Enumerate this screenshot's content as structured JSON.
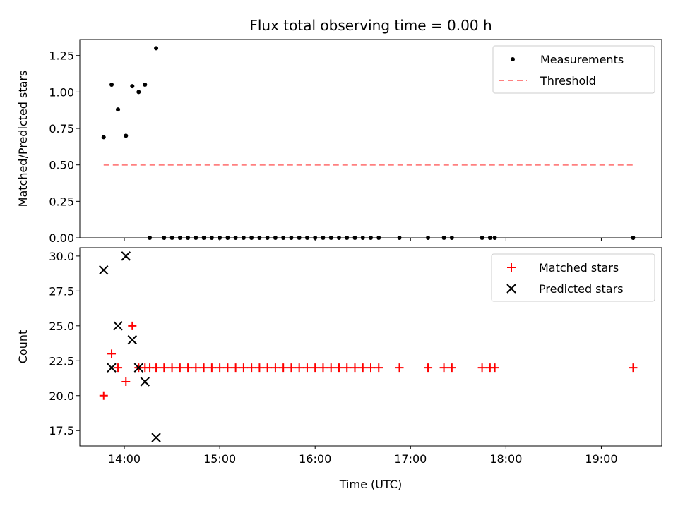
{
  "title": "Flux total observing time = 0.00 h",
  "xlabel": "Time (UTC)",
  "colors": {
    "measurement": "#000000",
    "threshold": "#ff8080",
    "matched": "#ff0000",
    "predicted": "#000000"
  },
  "chart_data": [
    {
      "type": "scatter",
      "ylabel": "Matched/Predicted stars",
      "xlim": [
        "13:32",
        "19:38"
      ],
      "ylim": [
        0,
        1.36
      ],
      "yticks": [
        "0.00",
        "0.25",
        "0.50",
        "0.75",
        "1.00",
        "1.25"
      ],
      "xticks": [
        "14:00",
        "15:00",
        "16:00",
        "17:00",
        "18:00",
        "19:00"
      ],
      "show_xtick_labels": false,
      "legend": {
        "placement": "top-right",
        "entries": [
          "Measurements",
          "Threshold"
        ]
      },
      "series": [
        {
          "name": "Measurements",
          "marker": "dot",
          "points": [
            [
              "13:47",
              0.69
            ],
            [
              "13:52",
              1.05
            ],
            [
              "13:56",
              0.88
            ],
            [
              "14:01",
              0.7
            ],
            [
              "14:05",
              1.04
            ],
            [
              "14:09",
              1.0
            ],
            [
              "14:13",
              1.05
            ],
            [
              "14:16",
              0.0
            ],
            [
              "14:20",
              1.3
            ],
            [
              "14:25",
              0.0
            ],
            [
              "14:30",
              0.0
            ],
            [
              "14:35",
              0.0
            ],
            [
              "14:40",
              0.0
            ],
            [
              "14:45",
              0.0
            ],
            [
              "14:50",
              0.0
            ],
            [
              "14:55",
              0.0
            ],
            [
              "15:00",
              0.0
            ],
            [
              "15:05",
              0.0
            ],
            [
              "15:10",
              0.0
            ],
            [
              "15:15",
              0.0
            ],
            [
              "15:20",
              0.0
            ],
            [
              "15:25",
              0.0
            ],
            [
              "15:30",
              0.0
            ],
            [
              "15:35",
              0.0
            ],
            [
              "15:40",
              0.0
            ],
            [
              "15:45",
              0.0
            ],
            [
              "15:50",
              0.0
            ],
            [
              "15:55",
              0.0
            ],
            [
              "16:00",
              0.0
            ],
            [
              "16:05",
              0.0
            ],
            [
              "16:10",
              0.0
            ],
            [
              "16:15",
              0.0
            ],
            [
              "16:20",
              0.0
            ],
            [
              "16:25",
              0.0
            ],
            [
              "16:30",
              0.0
            ],
            [
              "16:35",
              0.0
            ],
            [
              "16:40",
              0.0
            ],
            [
              "16:53",
              0.0
            ],
            [
              "17:11",
              0.0
            ],
            [
              "17:21",
              0.0
            ],
            [
              "17:26",
              0.0
            ],
            [
              "17:45",
              0.0
            ],
            [
              "17:50",
              0.0
            ],
            [
              "17:53",
              0.0
            ],
            [
              "19:20",
              0.0
            ]
          ]
        },
        {
          "name": "Threshold",
          "marker": "dashed-line",
          "points": [
            [
              "13:47",
              0.5
            ],
            [
              "19:20",
              0.5
            ]
          ]
        }
      ]
    },
    {
      "type": "scatter",
      "ylabel": "Count",
      "xlim": [
        "13:32",
        "19:38"
      ],
      "ylim": [
        16.4,
        30.6
      ],
      "yticks": [
        "17.5",
        "20.0",
        "22.5",
        "25.0",
        "27.5",
        "30.0"
      ],
      "xticks": [
        "14:00",
        "15:00",
        "16:00",
        "17:00",
        "18:00",
        "19:00"
      ],
      "show_xtick_labels": true,
      "legend": {
        "placement": "top-right",
        "entries": [
          "Matched stars",
          "Predicted stars"
        ]
      },
      "series": [
        {
          "name": "Matched stars",
          "marker": "plus",
          "points": [
            [
              "13:47",
              20
            ],
            [
              "13:52",
              23
            ],
            [
              "13:56",
              22
            ],
            [
              "14:01",
              21
            ],
            [
              "14:05",
              25
            ],
            [
              "14:09",
              22
            ],
            [
              "14:13",
              22
            ],
            [
              "14:16",
              22
            ],
            [
              "14:20",
              22
            ],
            [
              "14:25",
              22
            ],
            [
              "14:30",
              22
            ],
            [
              "14:35",
              22
            ],
            [
              "14:40",
              22
            ],
            [
              "14:45",
              22
            ],
            [
              "14:50",
              22
            ],
            [
              "14:55",
              22
            ],
            [
              "15:00",
              22
            ],
            [
              "15:05",
              22
            ],
            [
              "15:10",
              22
            ],
            [
              "15:15",
              22
            ],
            [
              "15:20",
              22
            ],
            [
              "15:25",
              22
            ],
            [
              "15:30",
              22
            ],
            [
              "15:35",
              22
            ],
            [
              "15:40",
              22
            ],
            [
              "15:45",
              22
            ],
            [
              "15:50",
              22
            ],
            [
              "15:55",
              22
            ],
            [
              "16:00",
              22
            ],
            [
              "16:05",
              22
            ],
            [
              "16:10",
              22
            ],
            [
              "16:15",
              22
            ],
            [
              "16:20",
              22
            ],
            [
              "16:25",
              22
            ],
            [
              "16:30",
              22
            ],
            [
              "16:35",
              22
            ],
            [
              "16:40",
              22
            ],
            [
              "16:53",
              22
            ],
            [
              "17:11",
              22
            ],
            [
              "17:21",
              22
            ],
            [
              "17:26",
              22
            ],
            [
              "17:45",
              22
            ],
            [
              "17:50",
              22
            ],
            [
              "17:53",
              22
            ],
            [
              "19:20",
              22
            ]
          ]
        },
        {
          "name": "Predicted stars",
          "marker": "x",
          "points": [
            [
              "13:47",
              29
            ],
            [
              "13:52",
              22
            ],
            [
              "13:56",
              25
            ],
            [
              "14:01",
              30
            ],
            [
              "14:05",
              24
            ],
            [
              "14:09",
              22
            ],
            [
              "14:13",
              21
            ],
            [
              "14:20",
              17
            ]
          ]
        }
      ]
    }
  ]
}
